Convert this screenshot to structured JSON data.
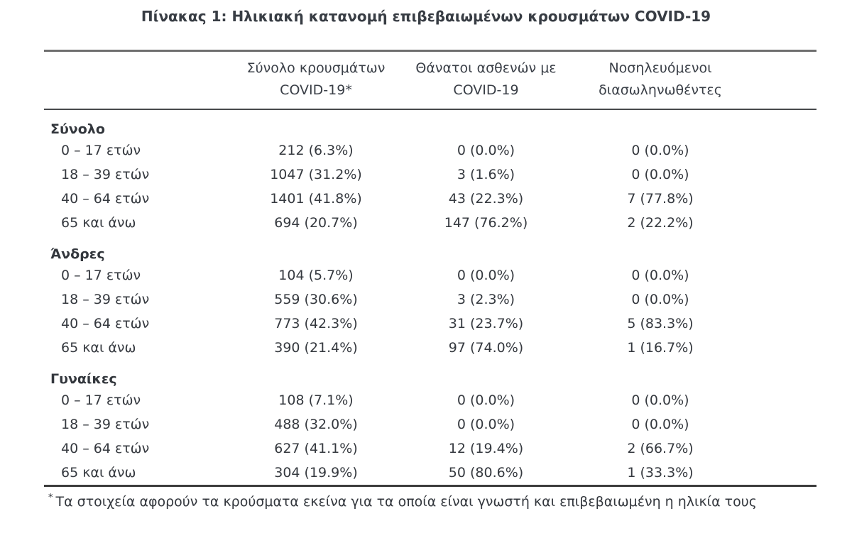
{
  "page_title": "Πίνακας 1: Ηλικιακή κατανομή επιβεβαιωμένων κρουσμάτων COVID-19",
  "table": {
    "headers": [
      {
        "line1": "Σύνολο κρουσμάτων",
        "line2": "COVID-19*"
      },
      {
        "line1": "Θάνατοι ασθενών με",
        "line2": "COVID-19"
      },
      {
        "line1": "Νοσηλευόμενοι",
        "line2": "διασωληνωθέντες"
      }
    ],
    "sections": [
      {
        "label": "Σύνολο",
        "rows": [
          {
            "age": "0 – 17 ετών",
            "cases": "212 (6.3%)",
            "deaths": "0 (0.0%)",
            "intubated": "0 (0.0%)"
          },
          {
            "age": "18 – 39 ετών",
            "cases": "1047 (31.2%)",
            "deaths": "3 (1.6%)",
            "intubated": "0 (0.0%)"
          },
          {
            "age": "40 – 64 ετών",
            "cases": "1401 (41.8%)",
            "deaths": "43 (22.3%)",
            "intubated": "7 (77.8%)"
          },
          {
            "age": "65 και άνω",
            "cases": "694 (20.7%)",
            "deaths": "147 (76.2%)",
            "intubated": "2 (22.2%)"
          }
        ]
      },
      {
        "label": "Άνδρες",
        "rows": [
          {
            "age": "0 – 17 ετών",
            "cases": "104 (5.7%)",
            "deaths": "0 (0.0%)",
            "intubated": "0 (0.0%)"
          },
          {
            "age": "18 – 39 ετών",
            "cases": "559 (30.6%)",
            "deaths": "3 (2.3%)",
            "intubated": "0 (0.0%)"
          },
          {
            "age": "40 – 64 ετών",
            "cases": "773 (42.3%)",
            "deaths": "31 (23.7%)",
            "intubated": "5 (83.3%)"
          },
          {
            "age": "65 και άνω",
            "cases": "390 (21.4%)",
            "deaths": "97 (74.0%)",
            "intubated": "1 (16.7%)"
          }
        ]
      },
      {
        "label": "Γυναίκες",
        "rows": [
          {
            "age": "0 – 17 ετών",
            "cases": "108 (7.1%)",
            "deaths": "0 (0.0%)",
            "intubated": "0 (0.0%)"
          },
          {
            "age": "18 – 39 ετών",
            "cases": "488 (32.0%)",
            "deaths": "0 (0.0%)",
            "intubated": "0 (0.0%)"
          },
          {
            "age": "40 – 64 ετών",
            "cases": "627 (41.1%)",
            "deaths": "12 (19.4%)",
            "intubated": "2 (66.7%)"
          },
          {
            "age": "65 και άνω",
            "cases": "304 (19.9%)",
            "deaths": "50 (80.6%)",
            "intubated": "1 (33.3%)"
          }
        ]
      }
    ]
  },
  "footnote": {
    "marker": "*",
    "text": "Τα στοιχεία αφορούν τα κρούσματα εκείνα για τα οποία είναι γνωστή και επιβεβαιωμένη η ηλικία τους"
  },
  "colors": {
    "text": "#35393f",
    "rule_top": "#6f6f6f",
    "rule_middle": "#47494c",
    "rule_bottom": "#3c3c3c"
  }
}
